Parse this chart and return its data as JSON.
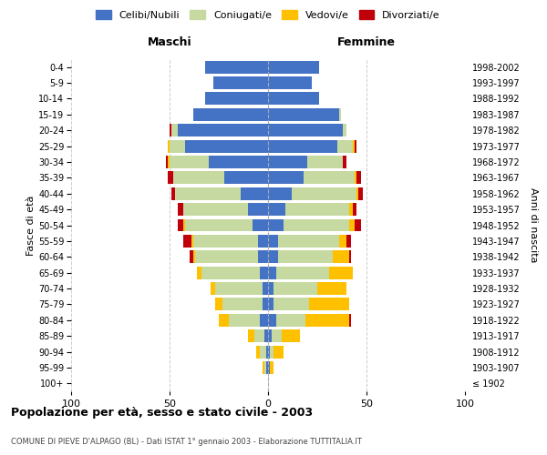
{
  "age_groups": [
    "100+",
    "95-99",
    "90-94",
    "85-89",
    "80-84",
    "75-79",
    "70-74",
    "65-69",
    "60-64",
    "55-59",
    "50-54",
    "45-49",
    "40-44",
    "35-39",
    "30-34",
    "25-29",
    "20-24",
    "15-19",
    "10-14",
    "5-9",
    "0-4"
  ],
  "birth_years": [
    "≤ 1902",
    "1903-1907",
    "1908-1912",
    "1913-1917",
    "1918-1922",
    "1923-1927",
    "1928-1932",
    "1933-1937",
    "1938-1942",
    "1943-1947",
    "1948-1952",
    "1953-1957",
    "1958-1962",
    "1963-1967",
    "1968-1972",
    "1973-1977",
    "1978-1982",
    "1983-1987",
    "1988-1992",
    "1993-1997",
    "1998-2002"
  ],
  "maschi": {
    "celibi": [
      0,
      1,
      1,
      2,
      4,
      3,
      3,
      4,
      5,
      5,
      8,
      10,
      14,
      22,
      30,
      42,
      46,
      38,
      32,
      28,
      32
    ],
    "coniugati": [
      0,
      1,
      3,
      5,
      16,
      20,
      24,
      30,
      32,
      33,
      34,
      33,
      33,
      26,
      20,
      8,
      3,
      0,
      0,
      0,
      0
    ],
    "vedovi": [
      0,
      1,
      2,
      3,
      5,
      4,
      2,
      2,
      1,
      1,
      1,
      0,
      0,
      0,
      1,
      1,
      0,
      0,
      0,
      0,
      0
    ],
    "divorziati": [
      0,
      0,
      0,
      0,
      0,
      0,
      0,
      0,
      2,
      4,
      3,
      3,
      2,
      3,
      1,
      0,
      1,
      0,
      0,
      0,
      0
    ]
  },
  "femmine": {
    "nubili": [
      0,
      1,
      1,
      2,
      4,
      3,
      3,
      4,
      5,
      5,
      8,
      9,
      12,
      18,
      20,
      35,
      38,
      36,
      26,
      22,
      26
    ],
    "coniugate": [
      0,
      0,
      2,
      5,
      15,
      18,
      22,
      27,
      28,
      31,
      33,
      32,
      33,
      26,
      18,
      8,
      2,
      1,
      0,
      0,
      0
    ],
    "vedove": [
      0,
      2,
      5,
      9,
      22,
      20,
      15,
      12,
      8,
      4,
      3,
      2,
      1,
      1,
      0,
      1,
      0,
      0,
      0,
      0,
      0
    ],
    "divorziate": [
      0,
      0,
      0,
      0,
      1,
      0,
      0,
      0,
      1,
      2,
      3,
      2,
      2,
      2,
      2,
      1,
      0,
      0,
      0,
      0,
      0
    ]
  },
  "colors": {
    "celibi": "#4472c4",
    "coniugati": "#c5d9a0",
    "vedovi": "#ffc000",
    "divorziati": "#c0000a"
  },
  "xlim": 100,
  "title": "Popolazione per età, sesso e stato civile - 2003",
  "subtitle": "COMUNE DI PIEVE D'ALPAGO (BL) - Dati ISTAT 1° gennaio 2003 - Elaborazione TUTTITALIA.IT",
  "ylabel_left": "Fasce di età",
  "ylabel_right": "Anni di nascita",
  "legend_labels": [
    "Celibi/Nubili",
    "Coniugati/e",
    "Vedovi/e",
    "Divorziati/e"
  ],
  "maschi_label": "Maschi",
  "femmine_label": "Femmine",
  "background_color": "#ffffff",
  "grid_color": "#cccccc"
}
